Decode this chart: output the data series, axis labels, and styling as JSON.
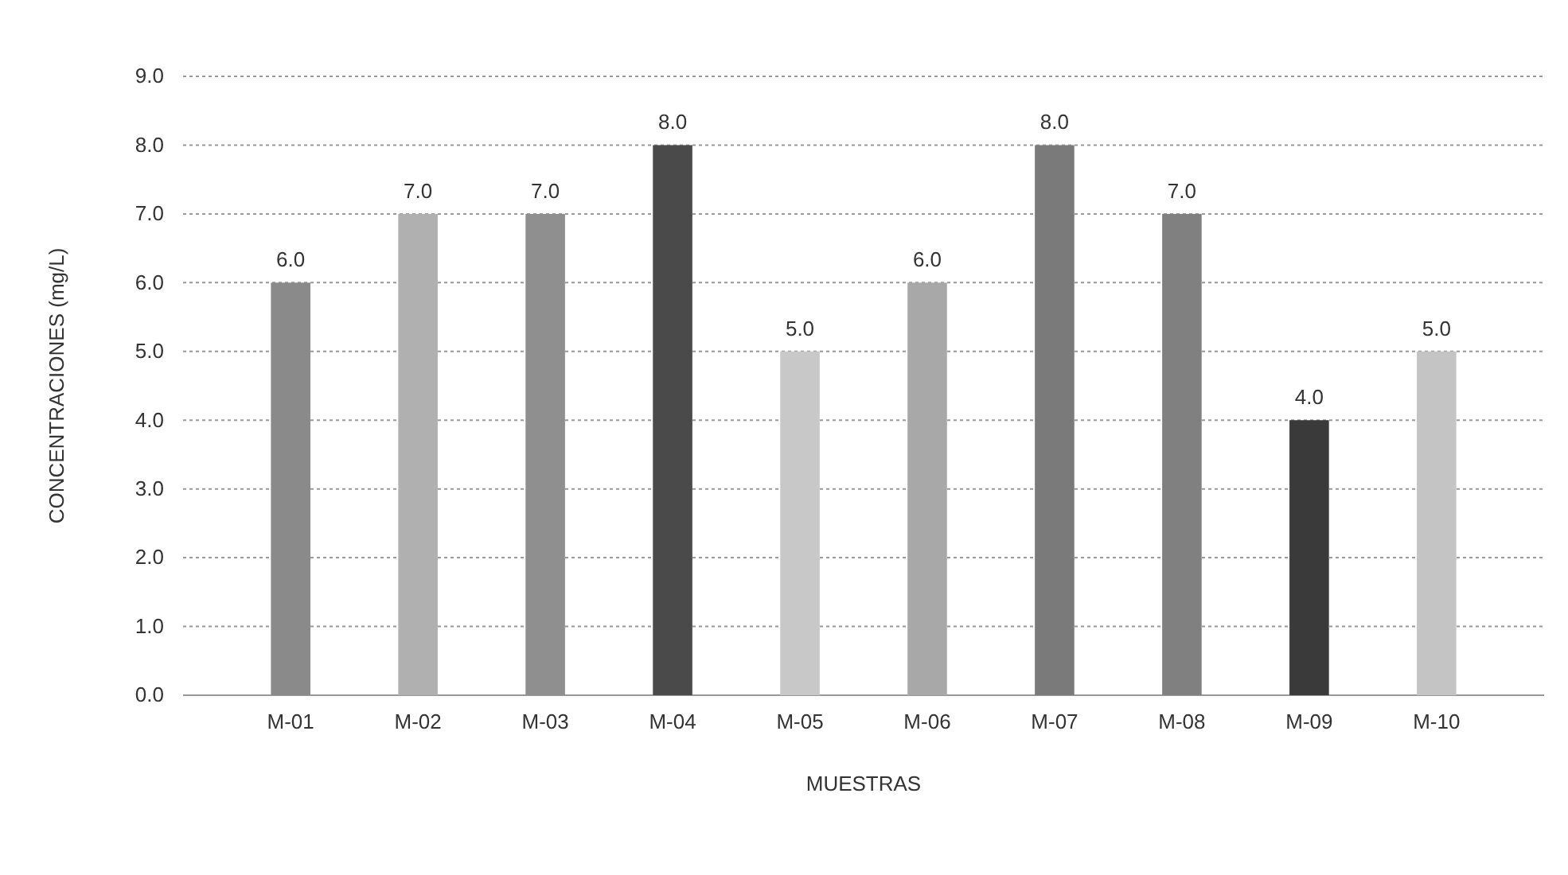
{
  "chart_data": {
    "type": "bar",
    "xlabel": "MUESTRAS",
    "ylabel": "CONCENTRACIONES (mg/L)",
    "categories": [
      "M-01",
      "M-02",
      "M-03",
      "M-04",
      "M-05",
      "M-06",
      "M-07",
      "M-08",
      "M-09",
      "M-10"
    ],
    "values": [
      6,
      7,
      7,
      8,
      5,
      6,
      8,
      7,
      4,
      5
    ],
    "colors": [
      "#8a8a8a",
      "#b0b0b0",
      "#8f8f8f",
      "#4a4a4a",
      "#c8c8c8",
      "#a8a8a8",
      "#7a7a7a",
      "#808080",
      "#3a3a3a",
      "#c4c4c4"
    ],
    "value_labels": [
      "6.0",
      "7.0",
      "7.0",
      "8.0",
      "5.0",
      "6.0",
      "8.0",
      "7.0",
      "4.0",
      "5.0"
    ],
    "ylim": [
      0,
      9
    ],
    "yticks": [
      {
        "value": 0,
        "label": "0.0"
      },
      {
        "value": 1,
        "label": "1.0"
      },
      {
        "value": 2,
        "label": "2.0"
      },
      {
        "value": 3,
        "label": "3.0"
      },
      {
        "value": 4,
        "label": "4.0"
      },
      {
        "value": 5,
        "label": "5.0"
      },
      {
        "value": 6,
        "label": "6.0"
      },
      {
        "value": 7,
        "label": "7.0"
      },
      {
        "value": 8,
        "label": "8.0"
      },
      {
        "value": 9,
        "label": "9.0"
      }
    ],
    "grid": "y"
  }
}
